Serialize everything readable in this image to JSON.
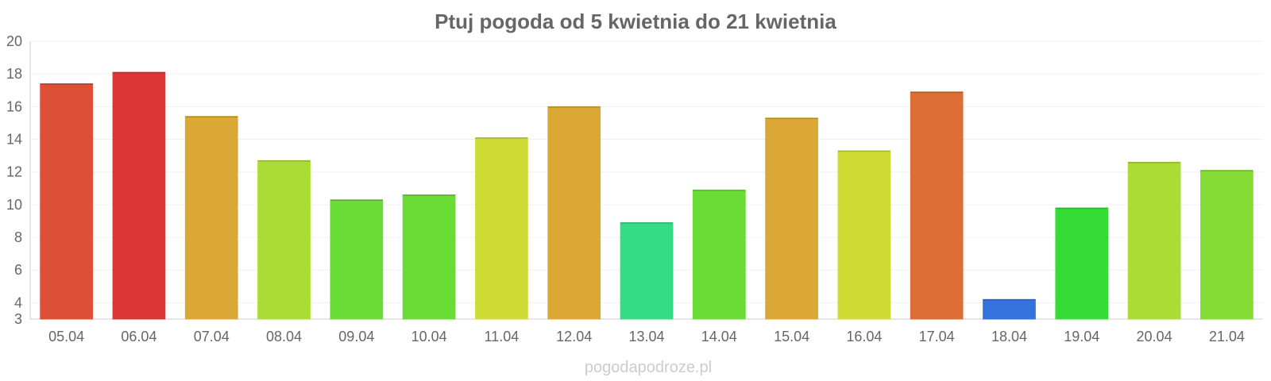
{
  "chart_data": {
    "type": "bar",
    "title": "Ptuj pogoda od 5 kwietnia do 21 kwietnia",
    "xlabel": "",
    "ylabel": "",
    "ylim": [
      3,
      20
    ],
    "yticks": [
      3,
      4,
      6,
      8,
      10,
      12,
      14,
      16,
      18,
      20
    ],
    "grid": true,
    "categories": [
      "05.04",
      "06.04",
      "07.04",
      "08.04",
      "09.04",
      "10.04",
      "11.04",
      "12.04",
      "13.04",
      "14.04",
      "15.04",
      "16.04",
      "17.04",
      "18.04",
      "19.04",
      "20.04",
      "21.04"
    ],
    "values": [
      17.4,
      18.1,
      15.4,
      12.7,
      10.3,
      10.6,
      14.1,
      16.0,
      8.9,
      10.9,
      15.3,
      13.3,
      16.9,
      4.2,
      9.8,
      12.6,
      12.1
    ],
    "colors": [
      "#dd5037",
      "#db3737",
      "#dca835",
      "#abdc35",
      "#69dc35",
      "#69dc35",
      "#cedc35",
      "#dca835",
      "#35dc85",
      "#69dc35",
      "#dca835",
      "#cedc35",
      "#dd6e35",
      "#3572dc",
      "#35dc35",
      "#abdc35",
      "#84dc35"
    ]
  },
  "watermark": "pogodapodroze.pl"
}
